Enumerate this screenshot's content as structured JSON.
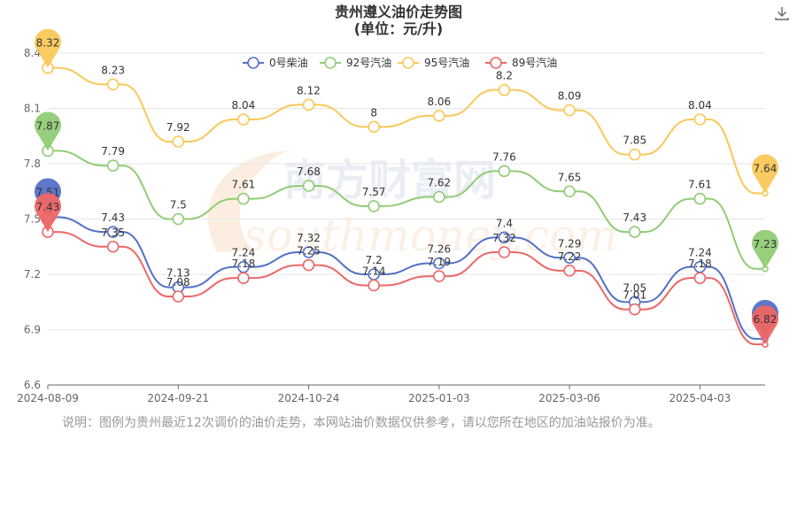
{
  "title_line1": "贵州遵义油价走势图",
  "title_line2": "(单位：元/升)",
  "download_icon": "download-icon",
  "watermark": {
    "cn": "南方财富网",
    "en": "southmoney.com"
  },
  "note": "说明：图例为贵州最近12次调价的油价走势，本网站油价数据仅供参考，请以您所在地区的加油站报价为准。",
  "chart_data": {
    "type": "line",
    "x": [
      "2024-08-09",
      "",
      "2024-09-21",
      "",
      "2024-10-24",
      "",
      "2025-01-03",
      "",
      "2025-03-06",
      "",
      "2025-04-03",
      ""
    ],
    "x_tick_labels": [
      "2024-08-09",
      "2024-09-21",
      "2024-10-24",
      "2025-01-03",
      "2025-03-06",
      "2025-04-03"
    ],
    "ylim": [
      6.6,
      8.4
    ],
    "y_ticks": [
      6.6,
      6.9,
      7.2,
      7.5,
      7.8,
      8.1,
      8.4
    ],
    "grid": true,
    "legend_position": "top",
    "series": [
      {
        "name": "0号柴油",
        "color": "#5470c6",
        "values": [
          7.51,
          7.43,
          7.13,
          7.24,
          7.32,
          7.2,
          7.26,
          7.4,
          7.29,
          7.05,
          7.24,
          6.85
        ]
      },
      {
        "name": "92号汽油",
        "color": "#91cc75",
        "values": [
          7.87,
          7.79,
          7.5,
          7.61,
          7.68,
          7.57,
          7.62,
          7.76,
          7.65,
          7.43,
          7.61,
          7.23
        ]
      },
      {
        "name": "95号汽油",
        "color": "#fac858",
        "values": [
          8.32,
          8.23,
          7.92,
          8.04,
          8.12,
          8.0,
          8.06,
          8.2,
          8.09,
          7.85,
          8.04,
          7.64
        ]
      },
      {
        "name": "89号汽油",
        "color": "#ee6666",
        "values": [
          7.43,
          7.35,
          7.08,
          7.18,
          7.25,
          7.14,
          7.19,
          7.32,
          7.22,
          7.01,
          7.18,
          6.82
        ]
      }
    ]
  }
}
